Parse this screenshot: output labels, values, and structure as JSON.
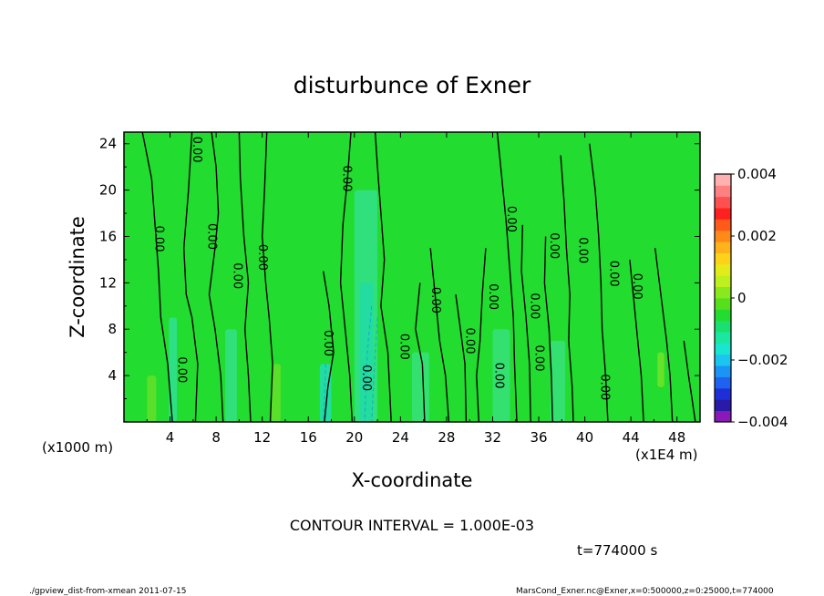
{
  "chart_data": {
    "type": "heatmap",
    "title": "disturbunce of Exner",
    "xlabel": "X-coordinate",
    "ylabel": "Z-coordinate",
    "x_unit": "(x1E4 m)",
    "y_unit": "(x1000 m)",
    "xlim": [
      0,
      50
    ],
    "ylim": [
      0,
      25
    ],
    "x_ticks": [
      4,
      8,
      12,
      16,
      20,
      24,
      28,
      32,
      36,
      40,
      44,
      48
    ],
    "y_ticks": [
      4,
      8,
      12,
      16,
      20,
      24
    ],
    "x_tick_labels": [
      "4",
      "8",
      "12",
      "16",
      "20",
      "24",
      "28",
      "32",
      "36",
      "40",
      "44",
      "48"
    ],
    "y_tick_labels": [
      "4",
      "8",
      "12",
      "16",
      "20",
      "24"
    ],
    "colorbar": {
      "min": -0.004,
      "max": 0.004,
      "labels": [
        {
          "value": 0.004,
          "text": "0.004"
        },
        {
          "value": 0.002,
          "text": "0.002"
        },
        {
          "value": 0,
          "text": "0"
        },
        {
          "value": -0.002,
          "text": "−0.002"
        },
        {
          "value": -0.004,
          "text": "−0.004"
        }
      ],
      "colors": [
        "#8a1ab8",
        "#2a1aa8",
        "#1f2fd8",
        "#1f62f0",
        "#1a94f5",
        "#1ac6f0",
        "#1ae6d0",
        "#1ae8a0",
        "#1ae070",
        "#22dc30",
        "#56e01c",
        "#8ae81e",
        "#bdf01e",
        "#e3ec1a",
        "#ffd21a",
        "#ffb21a",
        "#ff8a1a",
        "#ff5a1a",
        "#ff2020",
        "#ff5050",
        "#ff8080",
        "#ffb0b0"
      ]
    },
    "contour_interval_text": "CONTOUR INTERVAL = 1.000E-03",
    "contour_labels": [
      {
        "x": 6.3,
        "y": 23.5,
        "text": "0.00"
      },
      {
        "x": 3.0,
        "y": 15.8,
        "text": "0.00"
      },
      {
        "x": 7.6,
        "y": 16.0,
        "text": "0.00"
      },
      {
        "x": 9.8,
        "y": 12.6,
        "text": "0.00"
      },
      {
        "x": 12.0,
        "y": 14.2,
        "text": "0.00"
      },
      {
        "x": 19.3,
        "y": 21.0,
        "text": "0.00"
      },
      {
        "x": 5.0,
        "y": 4.5,
        "text": "0.00"
      },
      {
        "x": 17.7,
        "y": 6.8,
        "text": "0.00"
      },
      {
        "x": 21.0,
        "y": 3.8,
        "text": "0.00"
      },
      {
        "x": 24.3,
        "y": 6.5,
        "text": "0.00"
      },
      {
        "x": 27.0,
        "y": 10.5,
        "text": "0.00"
      },
      {
        "x": 30.0,
        "y": 7.0,
        "text": "0.00"
      },
      {
        "x": 32.0,
        "y": 10.8,
        "text": "0.00"
      },
      {
        "x": 32.5,
        "y": 4.0,
        "text": "0.00"
      },
      {
        "x": 33.6,
        "y": 17.5,
        "text": "0.00"
      },
      {
        "x": 35.6,
        "y": 10.0,
        "text": "0.00"
      },
      {
        "x": 36.0,
        "y": 5.5,
        "text": "0.00"
      },
      {
        "x": 37.3,
        "y": 15.2,
        "text": "0.00"
      },
      {
        "x": 39.8,
        "y": 14.8,
        "text": "0.00"
      },
      {
        "x": 42.5,
        "y": 12.8,
        "text": "0.00"
      },
      {
        "x": 44.5,
        "y": 11.7,
        "text": "0.00"
      },
      {
        "x": 41.7,
        "y": 3.0,
        "text": "0.00"
      }
    ],
    "zero_contours": [
      [
        [
          1.6,
          25
        ],
        [
          2.4,
          21
        ],
        [
          2.7,
          17
        ],
        [
          3.0,
          13
        ],
        [
          3.2,
          9
        ],
        [
          3.8,
          5
        ],
        [
          4.2,
          0
        ]
      ],
      [
        [
          5.9,
          25
        ],
        [
          5.6,
          20
        ],
        [
          5.2,
          15
        ],
        [
          5.4,
          11
        ],
        [
          5.9,
          9
        ],
        [
          6.4,
          5
        ],
        [
          6.2,
          0
        ]
      ],
      [
        [
          7.6,
          25
        ],
        [
          8.0,
          22
        ],
        [
          8.2,
          18
        ],
        [
          7.9,
          15
        ],
        [
          7.4,
          11
        ],
        [
          7.9,
          8
        ],
        [
          8.4,
          4
        ],
        [
          8.6,
          0
        ]
      ],
      [
        [
          10.0,
          25
        ],
        [
          10.1,
          21
        ],
        [
          10.4,
          16
        ],
        [
          10.8,
          12
        ],
        [
          10.5,
          8
        ],
        [
          10.8,
          4
        ],
        [
          11.0,
          0
        ]
      ],
      [
        [
          12.4,
          25
        ],
        [
          12.2,
          20
        ],
        [
          12.0,
          16
        ],
        [
          12.3,
          12
        ],
        [
          12.6,
          9
        ],
        [
          12.9,
          5
        ],
        [
          12.7,
          0
        ]
      ],
      [
        [
          17.3,
          13
        ],
        [
          17.8,
          10
        ],
        [
          18.2,
          6
        ],
        [
          17.7,
          3
        ],
        [
          17.4,
          0
        ]
      ],
      [
        [
          19.7,
          25
        ],
        [
          19.4,
          21
        ],
        [
          19.0,
          17
        ],
        [
          18.8,
          12
        ],
        [
          19.2,
          8
        ],
        [
          19.6,
          4
        ],
        [
          19.8,
          0
        ]
      ],
      [
        [
          21.8,
          25
        ],
        [
          22.0,
          22
        ],
        [
          22.3,
          18
        ],
        [
          22.6,
          14
        ],
        [
          22.3,
          10
        ],
        [
          22.9,
          6
        ],
        [
          23.2,
          0
        ]
      ],
      [
        [
          25.7,
          12
        ],
        [
          25.3,
          8
        ],
        [
          25.9,
          5
        ],
        [
          26.1,
          0
        ]
      ],
      [
        [
          26.6,
          15
        ],
        [
          27.0,
          11
        ],
        [
          27.4,
          7
        ],
        [
          27.9,
          4
        ],
        [
          28.2,
          0
        ]
      ],
      [
        [
          28.8,
          11
        ],
        [
          29.2,
          8
        ],
        [
          29.6,
          5
        ],
        [
          29.7,
          0
        ]
      ],
      [
        [
          31.4,
          15
        ],
        [
          31.1,
          11
        ],
        [
          30.9,
          7
        ],
        [
          30.6,
          4
        ],
        [
          30.8,
          0
        ]
      ],
      [
        [
          32.4,
          25
        ],
        [
          32.8,
          21
        ],
        [
          33.2,
          17
        ],
        [
          33.5,
          13
        ],
        [
          33.8,
          9
        ],
        [
          33.9,
          5
        ],
        [
          34.1,
          0
        ]
      ],
      [
        [
          34.6,
          17
        ],
        [
          34.5,
          13
        ],
        [
          34.9,
          9
        ],
        [
          35.2,
          5
        ],
        [
          35.3,
          0
        ]
      ],
      [
        [
          36.6,
          16
        ],
        [
          36.5,
          12
        ],
        [
          36.9,
          8
        ],
        [
          37.1,
          4
        ],
        [
          37.2,
          0
        ]
      ],
      [
        [
          37.9,
          23
        ],
        [
          38.2,
          19
        ],
        [
          38.4,
          15
        ],
        [
          38.7,
          11
        ],
        [
          38.6,
          7
        ],
        [
          38.9,
          3
        ],
        [
          39.0,
          0
        ]
      ],
      [
        [
          40.4,
          24
        ],
        [
          40.9,
          20
        ],
        [
          41.2,
          16
        ],
        [
          41.4,
          12
        ],
        [
          41.5,
          8
        ],
        [
          41.8,
          4
        ],
        [
          42.0,
          0
        ]
      ],
      [
        [
          43.9,
          14
        ],
        [
          44.2,
          11
        ],
        [
          44.6,
          7
        ],
        [
          44.9,
          4
        ],
        [
          45.1,
          0
        ]
      ],
      [
        [
          46.1,
          15
        ],
        [
          46.6,
          11
        ],
        [
          47.1,
          7
        ],
        [
          47.4,
          4
        ],
        [
          47.6,
          0
        ]
      ],
      [
        [
          48.6,
          7
        ],
        [
          49.0,
          4
        ],
        [
          49.3,
          2
        ],
        [
          49.6,
          0
        ]
      ]
    ],
    "negative_contours": [
      [
        [
          21.5,
          10
        ],
        [
          21.2,
          7
        ],
        [
          21.0,
          4
        ],
        [
          20.9,
          0
        ]
      ],
      [
        [
          22.0,
          9
        ],
        [
          21.8,
          6
        ],
        [
          21.6,
          2
        ],
        [
          21.5,
          0
        ]
      ],
      [
        [
          17.5,
          5
        ],
        [
          17.4,
          2
        ],
        [
          17.3,
          0
        ]
      ]
    ],
    "fill_patches": [
      {
        "x0": 20.0,
        "x1": 22.0,
        "y0": 0,
        "y1": 20,
        "color": "#30e07c"
      },
      {
        "x0": 20.5,
        "x1": 21.6,
        "y0": 0,
        "y1": 12,
        "color": "#22dca0"
      },
      {
        "x0": 3.9,
        "x1": 4.6,
        "y0": 0,
        "y1": 9,
        "color": "#2ee084"
      },
      {
        "x0": 8.8,
        "x1": 9.8,
        "y0": 0,
        "y1": 8,
        "color": "#32e07a"
      },
      {
        "x0": 17.0,
        "x1": 18.0,
        "y0": 0,
        "y1": 5,
        "color": "#22dca0"
      },
      {
        "x0": 25.0,
        "x1": 26.5,
        "y0": 0,
        "y1": 6,
        "color": "#34e070"
      },
      {
        "x0": 32.0,
        "x1": 33.5,
        "y0": 0,
        "y1": 8,
        "color": "#34e070"
      },
      {
        "x0": 37.0,
        "x1": 38.3,
        "y0": 0,
        "y1": 7,
        "color": "#34e070"
      },
      {
        "x0": 2.0,
        "x1": 2.8,
        "y0": 0,
        "y1": 4,
        "color": "#5ae02a"
      },
      {
        "x0": 12.8,
        "x1": 13.6,
        "y0": 0,
        "y1": 5,
        "color": "#5ae02a"
      },
      {
        "x0": 46.3,
        "x1": 46.9,
        "y0": 3,
        "y1": 6,
        "color": "#66e22a"
      }
    ]
  },
  "footer": {
    "time_text": "t=774000 s",
    "script_text": "./gpview_dist-from-xmean  2011-07-15",
    "source_text": "MarsCond_Exner.nc@Exner,x=0:500000,z=0:25000,t=774000"
  }
}
